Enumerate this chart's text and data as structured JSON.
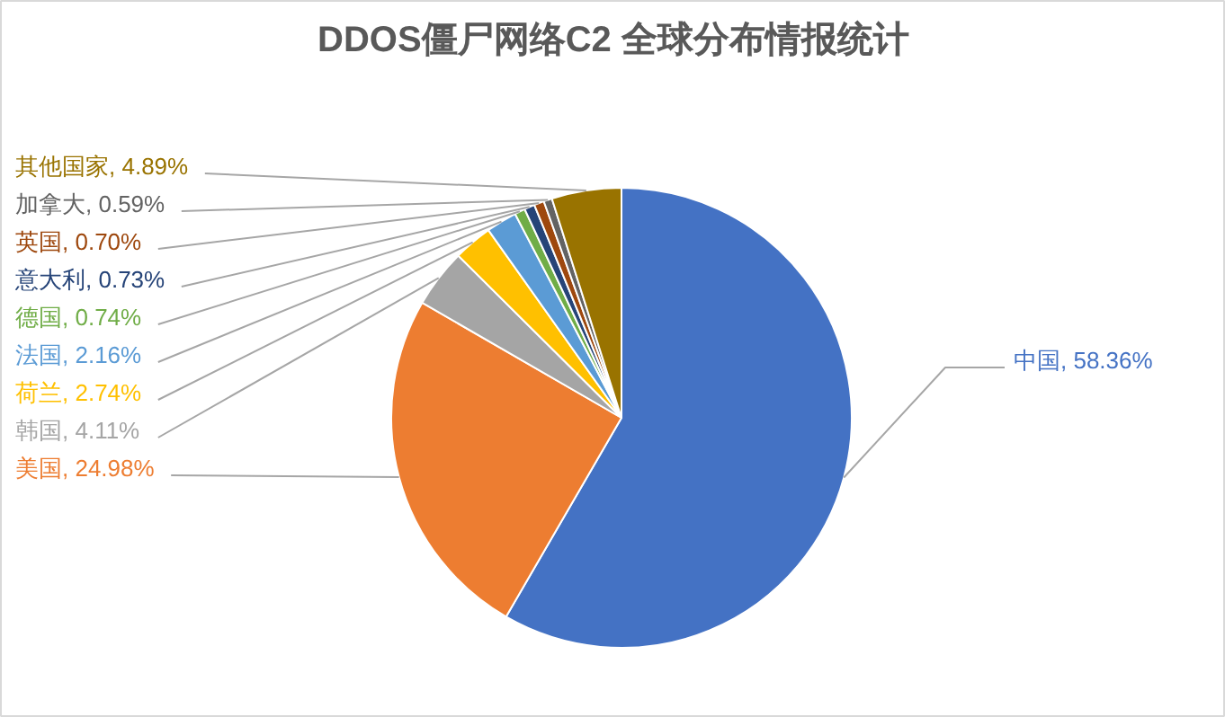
{
  "chart_data": {
    "type": "pie",
    "title": "DDOS僵尸网络C2 全球分布情报统计",
    "categories": [
      "中国",
      "美国",
      "韩国",
      "荷兰",
      "法国",
      "德国",
      "意大利",
      "英国",
      "加拿大",
      "其他国家"
    ],
    "values": [
      58.36,
      24.98,
      4.11,
      2.74,
      2.16,
      0.74,
      0.73,
      0.7,
      0.59,
      4.89
    ],
    "value_labels": [
      "58.36%",
      "24.98%",
      "4.11%",
      "2.74%",
      "2.16%",
      "0.74%",
      "0.73%",
      "0.70%",
      "0.59%",
      "4.89%"
    ],
    "colors": [
      "#4472c4",
      "#ed7d31",
      "#a5a5a5",
      "#ffc000",
      "#5b9bd5",
      "#70ad47",
      "#264478",
      "#9e480e",
      "#636363",
      "#997300"
    ],
    "legend": false
  }
}
